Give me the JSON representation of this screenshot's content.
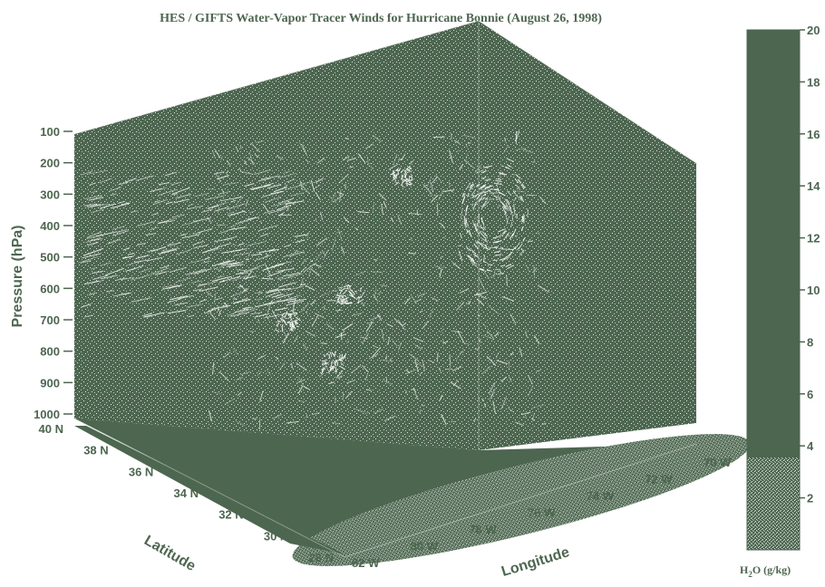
{
  "chart_data": {
    "type": "3d-volume",
    "title": "HES / GIFTS Water-Vapor Tracer Winds for Hurricane Bonnie (August 26, 1998)",
    "z_axis": {
      "label": "Pressure (hPa)",
      "ticks": [
        "100",
        "200",
        "300",
        "400",
        "500",
        "600",
        "700",
        "800",
        "900",
        "1000"
      ]
    },
    "y_axis": {
      "label": "Latitude",
      "ticks": [
        "40 N",
        "38 N",
        "36 N",
        "34 N",
        "32 N",
        "30 N",
        "28 N"
      ]
    },
    "x_axis": {
      "label": "Longitude",
      "ticks": [
        "82 W",
        "80 W",
        "78 W",
        "76 W",
        "74 W",
        "72 W",
        "70 W"
      ]
    },
    "colorbar": {
      "label": "H",
      "label_sub": "2",
      "label_rest": "O (g/kg)",
      "range": [
        0,
        20
      ],
      "ticks": [
        "2",
        "4",
        "6",
        "8",
        "10",
        "12",
        "14",
        "16",
        "18",
        "20"
      ],
      "highlight_below": 3.5
    },
    "colors": {
      "main": "#4d6650",
      "text": "#4d6650",
      "speckle": "#ffffff",
      "tracer": "#ffffff"
    }
  }
}
